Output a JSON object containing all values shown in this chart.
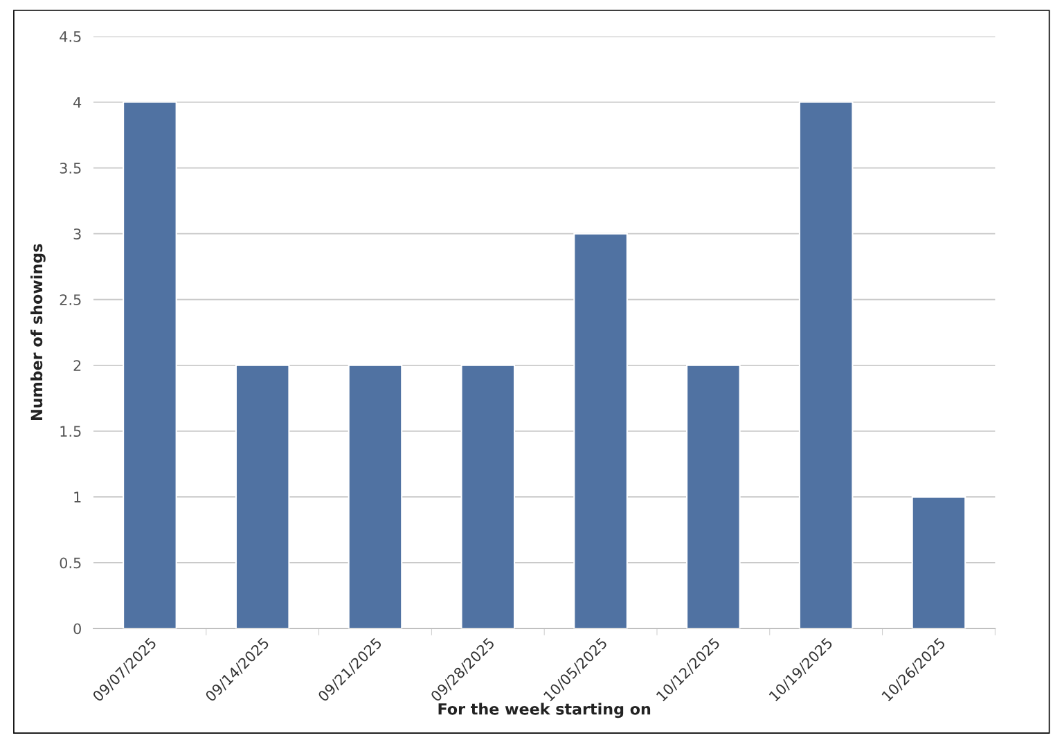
{
  "chart_data": {
    "type": "bar",
    "xlabel": "For the week starting on",
    "ylabel": "Number of showings",
    "categories": [
      "09/07/2025",
      "09/14/2025",
      "09/21/2025",
      "09/28/2025",
      "10/05/2025",
      "10/12/2025",
      "10/19/2025",
      "10/26/2025"
    ],
    "values": [
      4,
      2,
      2,
      2,
      3,
      2,
      4,
      1
    ],
    "color": "#5072a2",
    "ylim": [
      0,
      4.5
    ],
    "yticks": [
      0,
      0.5,
      1,
      1.5,
      2,
      2.5,
      3,
      3.5,
      4,
      4.5
    ],
    "grid": "y"
  }
}
